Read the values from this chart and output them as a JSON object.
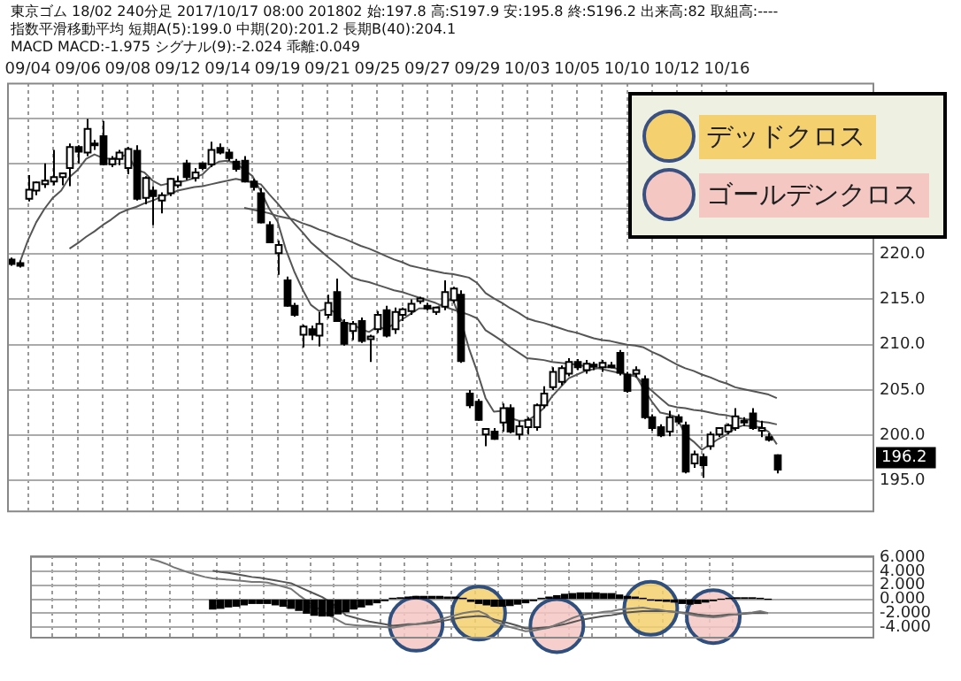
{
  "chart_data": [
    {
      "type": "candlestick",
      "title": "東京ゴム 18/02 240分足 2017/10/17 08:00 201802 始:197.8 高:S197.9 安:195.8 終:S196.2 出来高:82 取組高:----",
      "subtitle": "指数平滑移動平均 短期A(5):199.0 中期(20):201.2 長期B(40):204.1",
      "categories": [
        null,
        null,
        "09/04",
        null,
        null,
        null,
        null,
        null,
        "09/06",
        null,
        null,
        null,
        null,
        null,
        "09/08",
        null,
        null,
        null,
        null,
        null,
        "09/12",
        null,
        null,
        null,
        null,
        null,
        "09/14",
        null,
        null,
        null,
        null,
        null,
        "09/19",
        null,
        null,
        null,
        null,
        null,
        "09/21",
        null,
        null,
        null,
        null,
        null,
        "09/25",
        null,
        null,
        null,
        null,
        null,
        "09/27",
        null,
        null,
        null,
        null,
        null,
        "09/29",
        null,
        null,
        null,
        null,
        null,
        "10/03",
        null,
        null,
        null,
        null,
        null,
        "10/05",
        null,
        null,
        null,
        null,
        null,
        "10/10",
        null,
        null,
        null,
        null,
        null,
        "10/12",
        null,
        null,
        null,
        null,
        null,
        "10/16",
        null,
        null,
        null,
        null,
        null,
        null
      ],
      "ohlc": [
        [
          219.4,
          219.6,
          218.7,
          218.9
        ],
        [
          219.0,
          219.3,
          218.5,
          218.7
        ],
        [
          226.1,
          228.7,
          225.8,
          227.1
        ],
        [
          227.0,
          228.0,
          226.5,
          227.9
        ],
        [
          227.7,
          230.0,
          227.3,
          228.1
        ],
        [
          228.0,
          231.5,
          227.6,
          228.5
        ],
        [
          228.5,
          229.0,
          227.6,
          228.9
        ],
        [
          229.5,
          232.2,
          227.5,
          231.8
        ],
        [
          231.8,
          232.0,
          230.0,
          231.3
        ],
        [
          231.2,
          234.9,
          230.8,
          233.8
        ],
        [
          232.0,
          232.6,
          231.5,
          232.2
        ],
        [
          233.0,
          234.7,
          229.8,
          229.9
        ],
        [
          229.9,
          230.8,
          229.6,
          230.5
        ],
        [
          230.5,
          231.5,
          229.8,
          231.2
        ],
        [
          229.5,
          231.8,
          228.8,
          231.6
        ],
        [
          231.4,
          232.0,
          225.9,
          226.1
        ],
        [
          226.2,
          228.6,
          225.5,
          228.4
        ],
        [
          227.0,
          227.5,
          223.2,
          226.4
        ],
        [
          225.9,
          226.8,
          224.5,
          226.5
        ],
        [
          226.7,
          228.4,
          226.4,
          228.3
        ],
        [
          227.6,
          228.6,
          227.3,
          228.0
        ],
        [
          230.0,
          230.4,
          228.2,
          228.5
        ],
        [
          228.4,
          229.5,
          228.0,
          229.0
        ],
        [
          230.0,
          230.1,
          229.3,
          229.5
        ],
        [
          229.9,
          232.4,
          229.6,
          231.5
        ],
        [
          231.7,
          232.2,
          231.0,
          231.2
        ],
        [
          231.2,
          231.6,
          230.3,
          230.6
        ],
        [
          230.2,
          230.5,
          229.1,
          229.4
        ],
        [
          230.3,
          230.8,
          227.9,
          228.0
        ],
        [
          228.0,
          228.3,
          227.0,
          227.4
        ],
        [
          226.7,
          227.3,
          223.4,
          223.5
        ],
        [
          223.2,
          223.6,
          221.2,
          221.3
        ],
        [
          220.1,
          221.5,
          217.7,
          221.0
        ],
        [
          217.1,
          217.5,
          214.2,
          214.3
        ],
        [
          214.3,
          214.6,
          213.1,
          213.3
        ],
        [
          211.1,
          212.2,
          209.7,
          212.0
        ],
        [
          211.7,
          212.1,
          210.5,
          211.1
        ],
        [
          211.0,
          213.6,
          209.8,
          212.3
        ],
        [
          213.3,
          215.5,
          212.9,
          214.6
        ],
        [
          215.8,
          217.3,
          212.6,
          212.6
        ],
        [
          212.4,
          212.8,
          209.9,
          210.1
        ],
        [
          211.5,
          212.6,
          210.5,
          212.3
        ],
        [
          212.6,
          213.0,
          210.2,
          210.4
        ],
        [
          210.6,
          211.1,
          208.1,
          210.9
        ],
        [
          211.7,
          213.7,
          211.3,
          213.3
        ],
        [
          213.8,
          214.3,
          210.8,
          211.0
        ],
        [
          211.7,
          214.1,
          211.2,
          213.6
        ],
        [
          213.3,
          214.1,
          212.6,
          213.9
        ],
        [
          213.7,
          215.0,
          213.3,
          214.5
        ],
        [
          214.8,
          215.3,
          214.5,
          215.1
        ],
        [
          214.3,
          214.6,
          213.8,
          214.0
        ],
        [
          213.6,
          214.2,
          213.3,
          214.1
        ],
        [
          214.2,
          217.1,
          213.8,
          215.8
        ],
        [
          214.9,
          216.4,
          214.6,
          216.2
        ],
        [
          215.5,
          216.0,
          208.0,
          208.2
        ],
        [
          204.6,
          205.0,
          203.0,
          203.3
        ],
        [
          203.7,
          204.0,
          201.6,
          201.7
        ],
        [
          200.1,
          200.8,
          198.8,
          200.7
        ],
        [
          200.4,
          200.8,
          199.5,
          199.6
        ],
        [
          201.4,
          203.5,
          200.4,
          203.0
        ],
        [
          203.0,
          203.4,
          200.2,
          200.4
        ],
        [
          200.1,
          201.6,
          199.5,
          201.0
        ],
        [
          200.9,
          202.0,
          200.1,
          201.7
        ],
        [
          200.9,
          203.5,
          200.5,
          203.3
        ],
        [
          203.3,
          205.4,
          203.0,
          204.6
        ],
        [
          205.3,
          207.5,
          205.0,
          207.0
        ],
        [
          205.9,
          207.7,
          205.5,
          207.4
        ],
        [
          206.8,
          208.5,
          206.5,
          208.1
        ],
        [
          208.1,
          208.4,
          207.2,
          207.5
        ],
        [
          207.2,
          208.3,
          206.8,
          207.9
        ],
        [
          207.6,
          208.1,
          207.2,
          207.8
        ],
        [
          207.5,
          208.3,
          207.0,
          208.0
        ],
        [
          207.7,
          208.1,
          207.4,
          207.5
        ],
        [
          209.1,
          209.4,
          206.6,
          206.9
        ],
        [
          206.7,
          207.0,
          204.7,
          204.9
        ],
        [
          206.8,
          207.6,
          206.4,
          207.2
        ],
        [
          206.2,
          206.6,
          201.8,
          202.0
        ],
        [
          202.0,
          202.3,
          200.5,
          200.8
        ],
        [
          200.9,
          201.2,
          199.8,
          200.0
        ],
        [
          200.4,
          202.7,
          199.9,
          202.0
        ],
        [
          202.0,
          202.3,
          201.2,
          201.5
        ],
        [
          201.1,
          201.5,
          195.8,
          196.0
        ],
        [
          196.9,
          198.3,
          196.4,
          197.9
        ],
        [
          197.6,
          198.0,
          195.3,
          196.7
        ],
        [
          198.8,
          200.4,
          198.4,
          200.1
        ],
        [
          200.1,
          200.8,
          199.8,
          200.8
        ],
        [
          200.4,
          201.3,
          200.1,
          201.1
        ],
        [
          200.8,
          203.0,
          200.5,
          202.1
        ],
        [
          201.5,
          202.0,
          201.0,
          201.6
        ],
        [
          202.4,
          203.0,
          200.6,
          200.8
        ],
        [
          200.5,
          201.6,
          199.8,
          200.8
        ],
        [
          199.8,
          200.2,
          199.3,
          199.5
        ],
        [
          197.8,
          197.9,
          195.8,
          196.2
        ]
      ],
      "series": [
        {
          "type": "line",
          "color": "#555555",
          "values": [
            null,
            219.0,
            221.5,
            223.5,
            225.0,
            226.2,
            227.0,
            228.5,
            229.3,
            230.5,
            231.0,
            230.6,
            230.5,
            230.7,
            231.0,
            229.3,
            229.0,
            228.1,
            227.6,
            227.8,
            227.9,
            228.1,
            228.4,
            228.8,
            229.7,
            230.2,
            230.3,
            230.0,
            229.3,
            228.6,
            226.9,
            225.0,
            223.6,
            220.5,
            218.1,
            216.1,
            214.4,
            213.7,
            214.0,
            213.5,
            212.4,
            212.3,
            211.7,
            211.4,
            212.0,
            211.7,
            212.3,
            212.8,
            213.4,
            214.0,
            214.0,
            214.0,
            214.6,
            215.1,
            212.8,
            209.6,
            207.0,
            204.1,
            202.6,
            202.7,
            201.9,
            201.6,
            201.6,
            202.2,
            203.0,
            204.3,
            205.3,
            206.3,
            206.7,
            207.1,
            207.3,
            207.5,
            207.5,
            207.3,
            206.5,
            206.7,
            205.1,
            203.7,
            202.5,
            202.3,
            202.0,
            200.0,
            199.3,
            198.4,
            199.0,
            199.6,
            200.1,
            200.8,
            201.1,
            201.0,
            200.9,
            200.4,
            199.0
          ]
        },
        {
          "type": "line",
          "color": "#555555",
          "values": [
            null,
            null,
            null,
            null,
            null,
            null,
            null,
            220.6,
            221.2,
            221.9,
            222.5,
            223.2,
            223.8,
            224.5,
            224.9,
            225.2,
            225.6,
            225.9,
            226.3,
            226.6,
            227.0,
            227.2,
            227.4,
            227.5,
            227.7,
            227.9,
            228.1,
            228.3,
            228.1,
            227.9,
            227.7,
            226.6,
            225.6,
            224.5,
            223.4,
            222.4,
            221.3,
            220.5,
            219.7,
            219.0,
            218.2,
            217.4,
            217.1,
            216.9,
            216.6,
            216.3,
            216.0,
            215.8,
            215.5,
            215.2,
            214.9,
            214.6,
            214.2,
            213.9,
            213.6,
            213.3,
            212.9,
            211.6,
            211.0,
            210.4,
            209.7,
            209.1,
            208.5,
            208.4,
            208.3,
            208.1,
            208.0,
            207.9,
            207.8,
            207.6,
            207.5,
            207.3,
            207.1,
            206.9,
            206.7,
            206.5,
            205.7,
            204.9,
            204.1,
            203.3,
            203.1,
            203.0,
            202.8,
            202.7,
            202.5,
            202.3,
            202.2,
            202.0,
            201.8,
            201.7,
            201.5,
            201.4,
            201.2
          ]
        },
        {
          "type": "line",
          "color": "#555555",
          "values": [
            null,
            null,
            null,
            null,
            null,
            null,
            null,
            null,
            null,
            null,
            null,
            null,
            null,
            null,
            null,
            null,
            null,
            null,
            null,
            null,
            null,
            null,
            null,
            null,
            null,
            null,
            null,
            null,
            225.1,
            224.9,
            224.7,
            224.5,
            224.2,
            224.0,
            223.8,
            223.4,
            223.1,
            222.7,
            222.4,
            222.0,
            221.7,
            221.3,
            220.9,
            220.6,
            220.2,
            219.8,
            219.4,
            219.1,
            218.7,
            218.5,
            218.3,
            218.1,
            217.9,
            217.8,
            217.6,
            217.4,
            216.8,
            215.7,
            215.1,
            214.6,
            214.0,
            213.5,
            212.9,
            212.6,
            212.4,
            212.1,
            211.8,
            211.5,
            211.3,
            211.0,
            210.7,
            210.5,
            210.4,
            210.2,
            210.0,
            209.9,
            209.7,
            209.2,
            208.8,
            208.3,
            207.8,
            207.4,
            207.1,
            206.7,
            206.4,
            206.0,
            205.7,
            205.3,
            205.1,
            204.9,
            204.7,
            204.5,
            204.1
          ]
        }
      ],
      "ylim": [
        191.7,
        238.9
      ],
      "yticks": [
        {
          "value": 195,
          "label": "195.0"
        },
        {
          "value": 200,
          "label": "200.0"
        },
        {
          "value": 205,
          "label": "205.0"
        },
        {
          "value": 210,
          "label": "210.0"
        },
        {
          "value": 215,
          "label": "215.0"
        },
        {
          "value": 220,
          "label": "220.0"
        },
        {
          "value": 225,
          "label": null
        },
        {
          "value": 230,
          "label": null
        },
        {
          "value": 235,
          "label": null
        }
      ],
      "grid": true,
      "annotations": [
        "MACD MACD:-1.975 シグナル(9):-2.024 乖離:0.049",
        "196.2"
      ]
    },
    {
      "type": "line",
      "categories": [
        null,
        null,
        null,
        null,
        null,
        null,
        null,
        null,
        null,
        null,
        null,
        null,
        null,
        null,
        null,
        null,
        null,
        null,
        null,
        null,
        null,
        null,
        null,
        null,
        null,
        null,
        null,
        null,
        null,
        null,
        null,
        null,
        null,
        null,
        null,
        null,
        null,
        null,
        null,
        null,
        null,
        null,
        null,
        null,
        null,
        null,
        null,
        null,
        null,
        null,
        null,
        null,
        null,
        null,
        null,
        null,
        null,
        null,
        null,
        null,
        null,
        null,
        null,
        null,
        null,
        null,
        null,
        null,
        null,
        null,
        null,
        null,
        null,
        null,
        null,
        null,
        null,
        null,
        null,
        null,
        null,
        null,
        null,
        null,
        null,
        null,
        null,
        null,
        null,
        null,
        null,
        null,
        null
      ],
      "series": [
        {
          "type": "bar",
          "color": "#000000",
          "values": [
            null,
            null,
            null,
            null,
            null,
            null,
            null,
            null,
            null,
            null,
            null,
            null,
            null,
            null,
            null,
            null,
            null,
            null,
            null,
            null,
            null,
            -1.4,
            -1.3,
            -1.1,
            -1.0,
            -0.8,
            -0.6,
            -0.6,
            -0.6,
            -0.8,
            -1.0,
            -1.3,
            -1.6,
            -2.0,
            -2.3,
            -2.4,
            -2.4,
            -2.1,
            -1.8,
            -1.4,
            -1.1,
            -0.8,
            -0.5,
            -0.2,
            0.1,
            0.2,
            0.3,
            0.4,
            0.4,
            0.4,
            0.4,
            0.3,
            0.3,
            0.1,
            -0.3,
            -0.6,
            -0.8,
            -1.0,
            -1.0,
            -0.9,
            -0.7,
            -0.5,
            -0.2,
            0.1,
            0.3,
            0.5,
            0.7,
            0.8,
            0.9,
            0.9,
            0.9,
            0.8,
            0.8,
            0.6,
            0.4,
            0.3,
            0.1,
            -0.1,
            -0.2,
            -0.3,
            -0.4,
            -0.6,
            -0.7,
            -0.6,
            -0.4,
            -0.2,
            0.0,
            0.1,
            0.2,
            0.2,
            0.2,
            0.1,
            0.0
          ]
        },
        {
          "type": "line",
          "color": "#777777",
          "values": [
            null,
            null,
            null,
            null,
            null,
            null,
            null,
            null,
            null,
            null,
            null,
            null,
            null,
            5.8,
            5.5,
            5.1,
            4.6,
            4.2,
            3.8,
            3.5,
            3.2,
            3.0,
            2.9,
            2.8,
            2.7,
            2.6,
            2.5,
            2.5,
            2.4,
            2.1,
            1.8,
            1.5,
            0.6,
            -0.2,
            -1.0,
            -1.7,
            -2.4,
            -3.0,
            -3.6,
            -3.7,
            -3.8,
            -3.8,
            -3.9,
            -4.0,
            -4.1,
            -3.9,
            -3.7,
            -3.6,
            -3.4,
            -3.2,
            -2.9,
            -2.6,
            -2.3,
            -2.0,
            -1.8,
            -1.7,
            -2.2,
            -3.2,
            -3.6,
            -4.0,
            -4.3,
            -4.6,
            -4.5,
            -4.3,
            -4.1,
            -3.6,
            -3.2,
            -2.7,
            -2.3,
            -2.1,
            -2.0,
            -1.8,
            -1.7,
            -1.5,
            -1.4,
            -1.3,
            -1.2,
            -1.4,
            -1.5,
            -1.7,
            -1.8,
            -2.0,
            -2.2,
            -2.4,
            -2.5,
            -2.6,
            -2.5,
            -2.3,
            -2.2,
            -2.0,
            -1.9,
            -1.7,
            -2.0
          ]
        },
        {
          "type": "line",
          "color": "#555555",
          "values": [
            null,
            null,
            null,
            null,
            null,
            null,
            null,
            null,
            null,
            null,
            null,
            null,
            null,
            null,
            null,
            null,
            null,
            null,
            null,
            null,
            null,
            4.1,
            3.9,
            3.8,
            3.6,
            3.4,
            3.2,
            3.1,
            2.9,
            2.7,
            2.5,
            2.3,
            1.8,
            1.3,
            0.8,
            0.3,
            -0.4,
            -1.2,
            -2.3,
            -2.6,
            -2.9,
            -3.2,
            -3.4,
            -3.6,
            -3.8,
            -3.7,
            -3.6,
            -3.6,
            -3.5,
            -3.4,
            -3.2,
            -3.0,
            -2.8,
            -2.6,
            -2.5,
            -2.4,
            -2.5,
            -2.9,
            -3.2,
            -3.5,
            -3.8,
            -4.2,
            -4.2,
            -4.1,
            -4.0,
            -3.8,
            -3.6,
            -3.3,
            -3.0,
            -2.8,
            -2.6,
            -2.4,
            -2.3,
            -2.1,
            -1.9,
            -1.8,
            -1.7,
            -1.7,
            -1.7,
            -1.7,
            -1.8,
            -1.9,
            -2.0,
            -2.2,
            -2.3,
            -2.4,
            -2.3,
            -2.2,
            -2.2,
            -2.1,
            -2.0,
            -2.0,
            -2.0
          ]
        },
        {
          "type": "scatter",
          "name": "デッドクロス",
          "color": "#f5d06e",
          "marker": "circle",
          "values": [
            null,
            null,
            null,
            null,
            null,
            null,
            null,
            null,
            null,
            null,
            null,
            null,
            null,
            null,
            null,
            null,
            null,
            null,
            null,
            null,
            null,
            null,
            null,
            null,
            null,
            null,
            null,
            null,
            null,
            null,
            null,
            null,
            null,
            null,
            null,
            null,
            null,
            null,
            null,
            null,
            null,
            null,
            null,
            null,
            null,
            null,
            null,
            null,
            null,
            null,
            null,
            null,
            null,
            null,
            null,
            -2.0,
            null,
            null,
            null,
            null,
            null,
            null,
            null,
            null,
            null,
            null,
            null,
            null,
            null,
            null,
            null,
            null,
            null,
            null,
            null,
            null,
            null,
            -1.3,
            null,
            null,
            null,
            null,
            null,
            null,
            null,
            null,
            null,
            null,
            null,
            null,
            null,
            null,
            null
          ]
        },
        {
          "type": "scatter",
          "name": "ゴールデンクロス",
          "color": "#f4c7c3",
          "marker": "circle",
          "values": [
            null,
            null,
            null,
            null,
            null,
            null,
            null,
            null,
            null,
            null,
            null,
            null,
            null,
            null,
            null,
            null,
            null,
            null,
            null,
            null,
            null,
            null,
            null,
            null,
            null,
            null,
            null,
            null,
            null,
            null,
            null,
            null,
            null,
            null,
            null,
            null,
            null,
            null,
            null,
            null,
            null,
            null,
            null,
            null,
            null,
            null,
            null,
            -3.6,
            null,
            null,
            null,
            null,
            null,
            null,
            null,
            null,
            null,
            null,
            null,
            null,
            null,
            null,
            null,
            null,
            null,
            -3.8,
            null,
            null,
            null,
            null,
            null,
            null,
            null,
            null,
            null,
            null,
            null,
            null,
            null,
            null,
            null,
            null,
            null,
            null,
            null,
            -2.5,
            null,
            null,
            null,
            null,
            null,
            null,
            null
          ]
        }
      ],
      "ylim": [
        -5.4,
        6.3
      ],
      "yticks": [
        {
          "value": -4,
          "label": "-4.000"
        },
        {
          "value": -2,
          "label": "-2.000"
        },
        {
          "value": 0,
          "label": "0.000"
        },
        {
          "value": 2,
          "label": "2.000"
        },
        {
          "value": 4,
          "label": "4.000"
        },
        {
          "value": 6,
          "label": "6.000"
        }
      ],
      "grid": true,
      "tick_labels": "y",
      "legend": "top right"
    }
  ]
}
